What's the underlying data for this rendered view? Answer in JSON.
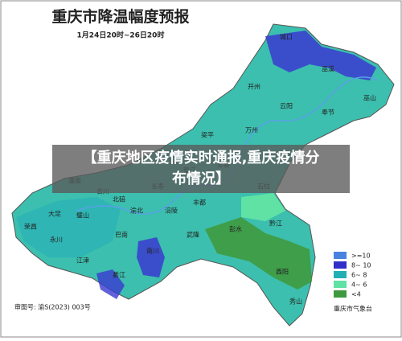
{
  "header": {
    "title": "重庆市降温幅度预报",
    "subtitle": "1月24日20时~26日20时"
  },
  "overlay": {
    "text": "【重庆地区疫情实时通报,重庆疫情分布情况】"
  },
  "districts": [
    "城口",
    "巫溪",
    "巫山",
    "开州",
    "云阳",
    "奉节",
    "万州",
    "梁平",
    "忠县",
    "石柱",
    "丰都",
    "涪陵",
    "长寿",
    "垫江",
    "潼南",
    "合川",
    "北碚",
    "渝北",
    "永川",
    "璧山",
    "大足",
    "荣昌",
    "江津",
    "綦江",
    "南川",
    "武隆",
    "彭水",
    "黔江",
    "酉阳",
    "秀山",
    "巴南"
  ],
  "legend": [
    ">=10",
    "8~ 10",
    "6~ 8",
    "4~ 6",
    "<4"
  ],
  "footer": {
    "map_number": "审图号: 渝S(2023) 003号",
    "source": "重庆市气象台"
  }
}
